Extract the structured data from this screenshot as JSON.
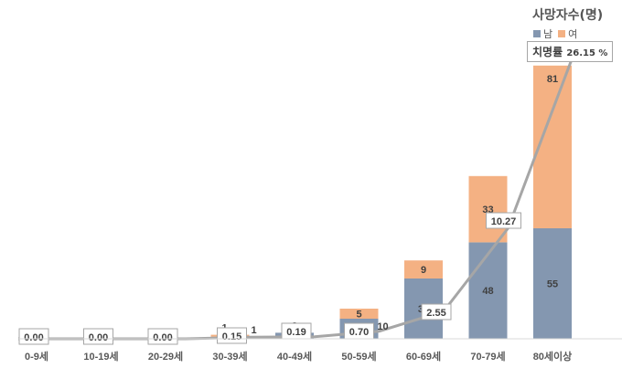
{
  "colors": {
    "male": "#8497b0",
    "female": "#f4b183",
    "line": "#a6a6a6",
    "text": "#404040"
  },
  "legend": {
    "title": "사망자수(명)",
    "items": [
      {
        "label": "남",
        "color": "#8497b0"
      },
      {
        "label": "여",
        "color": "#f4b183"
      }
    ]
  },
  "cfr_label": {
    "name": "치명률",
    "value": "26.15 %"
  },
  "chart_data": {
    "type": "bar",
    "stacked": true,
    "categories": [
      "0-9세",
      "10-19세",
      "20-29세",
      "30-39세",
      "40-49세",
      "50-59세",
      "60-69세",
      "70-79세",
      "80세이상"
    ],
    "series": [
      {
        "name": "남",
        "values": [
          0,
          0,
          0,
          1,
          3,
          10,
          30,
          48,
          55
        ],
        "color": "#8497b0"
      },
      {
        "name": "여",
        "values": [
          0,
          0,
          0,
          1,
          0,
          5,
          9,
          33,
          81
        ],
        "color": "#f4b183"
      }
    ],
    "line": {
      "name": "치명률",
      "values": [
        0.0,
        0.0,
        0.0,
        0.15,
        0.19,
        0.7,
        2.55,
        10.27,
        26.15
      ],
      "labels": [
        "0.00",
        "0.00",
        "0.00",
        "0.15",
        "0.19",
        "0.70",
        "2.55",
        "10.27",
        "26.15 %"
      ],
      "ylim": [
        0,
        27
      ]
    },
    "ylim": [
      0,
      140
    ],
    "grid": false,
    "legend_position": "top-right"
  }
}
